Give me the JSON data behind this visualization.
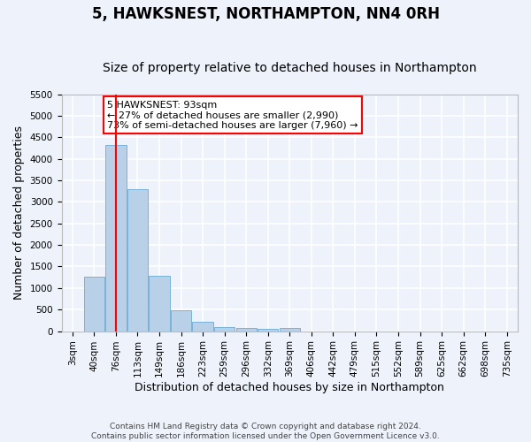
{
  "title": "5, HAWKSNEST, NORTHAMPTON, NN4 0RH",
  "subtitle": "Size of property relative to detached houses in Northampton",
  "xlabel": "Distribution of detached houses by size in Northampton",
  "ylabel": "Number of detached properties",
  "bar_labels": [
    "3sqm",
    "40sqm",
    "76sqm",
    "113sqm",
    "149sqm",
    "186sqm",
    "223sqm",
    "259sqm",
    "296sqm",
    "332sqm",
    "369sqm",
    "406sqm",
    "442sqm",
    "479sqm",
    "515sqm",
    "552sqm",
    "589sqm",
    "625sqm",
    "662sqm",
    "698sqm",
    "735sqm"
  ],
  "bar_values": [
    0,
    1270,
    4330,
    3300,
    1290,
    490,
    215,
    100,
    80,
    55,
    65,
    0,
    0,
    0,
    0,
    0,
    0,
    0,
    0,
    0,
    0
  ],
  "bar_color": "#b8d0e8",
  "bar_edge_color": "#6aaad4",
  "ylim": [
    0,
    5500
  ],
  "yticks": [
    0,
    500,
    1000,
    1500,
    2000,
    2500,
    3000,
    3500,
    4000,
    4500,
    5000,
    5500
  ],
  "vline_x_index": 2,
  "vline_color": "red",
  "annotation_text": "5 HAWKSNEST: 93sqm\n← 27% of detached houses are smaller (2,990)\n73% of semi-detached houses are larger (7,960) →",
  "annotation_box_color": "white",
  "annotation_box_edge_color": "red",
  "footer_line1": "Contains HM Land Registry data © Crown copyright and database right 2024.",
  "footer_line2": "Contains public sector information licensed under the Open Government Licence v3.0.",
  "background_color": "#edf2fb",
  "grid_color": "white",
  "title_fontsize": 12,
  "subtitle_fontsize": 10,
  "ylabel_fontsize": 9,
  "xlabel_fontsize": 9,
  "tick_fontsize": 7.5,
  "annotation_fontsize": 8,
  "footer_fontsize": 6.5
}
